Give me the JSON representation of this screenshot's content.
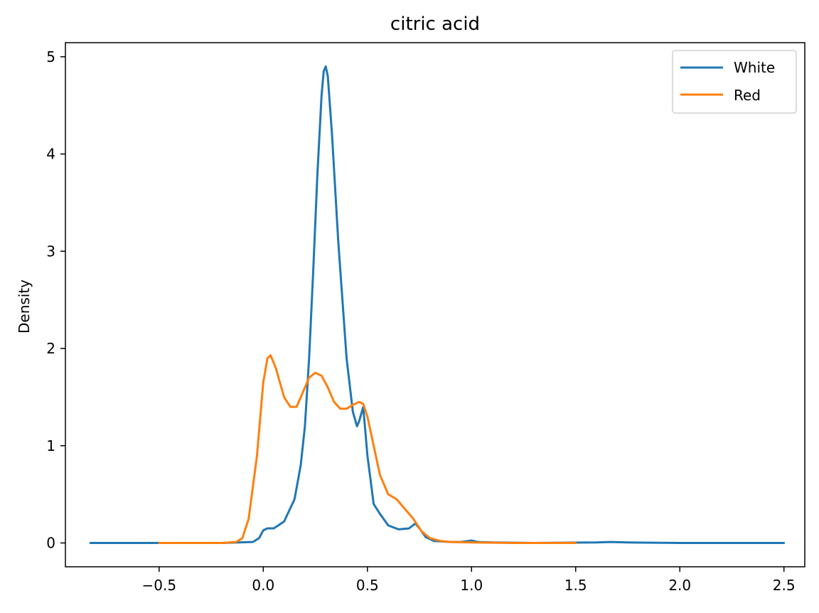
{
  "chart_data": {
    "type": "line",
    "title": "citric acid",
    "xlabel": "",
    "ylabel": "Density",
    "xlim": [
      -0.95,
      2.6
    ],
    "ylim": [
      -0.245,
      5.145
    ],
    "x_ticks": [
      -0.5,
      0.0,
      0.5,
      1.0,
      1.5,
      2.0,
      2.5
    ],
    "x_tick_labels": [
      "−0.5",
      "0.0",
      "0.5",
      "1.0",
      "1.5",
      "2.0",
      "2.5"
    ],
    "y_ticks": [
      0,
      1,
      2,
      3,
      4,
      5
    ],
    "y_tick_labels": [
      "0",
      "1",
      "2",
      "3",
      "4",
      "5"
    ],
    "grid": false,
    "legend_position": "top-right",
    "series": [
      {
        "name": "White",
        "color": "#1f77b4",
        "x": [
          -0.83,
          -0.5,
          -0.2,
          -0.05,
          -0.02,
          0.0,
          0.02,
          0.05,
          0.1,
          0.15,
          0.18,
          0.2,
          0.22,
          0.24,
          0.26,
          0.28,
          0.29,
          0.3,
          0.31,
          0.33,
          0.36,
          0.4,
          0.43,
          0.45,
          0.46,
          0.48,
          0.5,
          0.53,
          0.56,
          0.6,
          0.65,
          0.7,
          0.73,
          0.75,
          0.78,
          0.82,
          0.9,
          0.95,
          1.0,
          1.03,
          1.1,
          1.3,
          1.6,
          1.67,
          1.75,
          2.0,
          2.5
        ],
        "y": [
          0.0,
          0.0,
          0.0,
          0.01,
          0.05,
          0.13,
          0.15,
          0.15,
          0.22,
          0.45,
          0.8,
          1.2,
          1.9,
          2.8,
          3.8,
          4.6,
          4.85,
          4.9,
          4.8,
          4.2,
          3.1,
          1.9,
          1.35,
          1.2,
          1.25,
          1.4,
          0.9,
          0.4,
          0.3,
          0.18,
          0.14,
          0.15,
          0.2,
          0.15,
          0.06,
          0.02,
          0.01,
          0.01,
          0.025,
          0.01,
          0.005,
          0.0,
          0.005,
          0.01,
          0.005,
          0.0,
          0.0
        ]
      },
      {
        "name": "Red",
        "color": "#ff7f0e",
        "x": [
          -0.5,
          -0.2,
          -0.13,
          -0.1,
          -0.07,
          -0.03,
          0.0,
          0.02,
          0.035,
          0.06,
          0.1,
          0.13,
          0.16,
          0.19,
          0.22,
          0.25,
          0.28,
          0.31,
          0.34,
          0.37,
          0.4,
          0.43,
          0.46,
          0.48,
          0.5,
          0.53,
          0.56,
          0.6,
          0.64,
          0.68,
          0.72,
          0.76,
          0.8,
          0.85,
          0.9,
          1.0,
          1.2,
          1.5
        ],
        "y": [
          0.0,
          0.0,
          0.01,
          0.05,
          0.25,
          0.9,
          1.65,
          1.9,
          1.93,
          1.8,
          1.5,
          1.4,
          1.4,
          1.55,
          1.7,
          1.75,
          1.72,
          1.6,
          1.45,
          1.38,
          1.38,
          1.42,
          1.45,
          1.43,
          1.3,
          1.0,
          0.7,
          0.5,
          0.45,
          0.35,
          0.25,
          0.12,
          0.05,
          0.02,
          0.01,
          0.005,
          0.0,
          0.0
        ]
      }
    ]
  }
}
